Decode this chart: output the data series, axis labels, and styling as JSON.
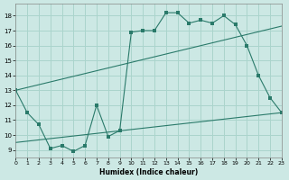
{
  "xlabel": "Humidex (Indice chaleur)",
  "bg_color": "#cce8e4",
  "grid_color": "#aad4cc",
  "line_color": "#2a7a6a",
  "xlim": [
    0,
    23
  ],
  "ylim": [
    8.5,
    18.8
  ],
  "xticks": [
    0,
    1,
    2,
    3,
    4,
    5,
    6,
    7,
    8,
    9,
    10,
    11,
    12,
    13,
    14,
    15,
    16,
    17,
    18,
    19,
    20,
    21,
    22,
    23
  ],
  "yticks": [
    9,
    10,
    11,
    12,
    13,
    14,
    15,
    16,
    17,
    18
  ],
  "line1_x": [
    0,
    1,
    2,
    3,
    4,
    5,
    6,
    7,
    8,
    9,
    10,
    11,
    12,
    13,
    14,
    15,
    16,
    17,
    18,
    19,
    20,
    21,
    22,
    23
  ],
  "line1_y": [
    13.0,
    11.5,
    10.7,
    9.1,
    9.3,
    8.9,
    9.3,
    12.0,
    9.9,
    10.3,
    16.9,
    17.0,
    17.0,
    18.2,
    18.2,
    17.5,
    17.7,
    17.5,
    18.0,
    17.4,
    16.0,
    14.0,
    12.5,
    11.5
  ],
  "line2_x": [
    0,
    23
  ],
  "line2_y": [
    13.0,
    17.3
  ],
  "line3_x": [
    0,
    23
  ],
  "line3_y": [
    9.5,
    11.5
  ]
}
